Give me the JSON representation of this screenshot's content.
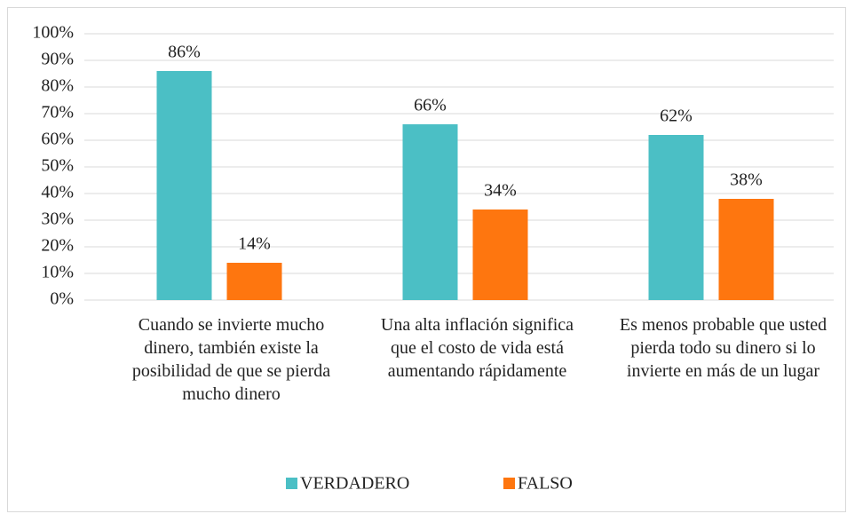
{
  "chart_data": {
    "type": "bar",
    "categories": [
      "Cuando se invierte mucho dinero, también existe la posibilidad de que se pierda mucho dinero",
      "Una alta inflación significa que el costo de vida está aumentando rápidamente",
      "Es menos probable que usted pierda todo su dinero si lo invierte en más de un lugar"
    ],
    "series": [
      {
        "name": "VERDADERO",
        "color": "#4bbfc5",
        "values": [
          86,
          66,
          62
        ],
        "value_labels": [
          "86%",
          "66%",
          "62%"
        ]
      },
      {
        "name": "FALSO",
        "color": "#fe760f",
        "values": [
          14,
          34,
          38
        ],
        "value_labels": [
          "14%",
          "34%",
          "38%"
        ]
      }
    ],
    "ylim": [
      0,
      100
    ],
    "yticks": [
      {
        "value": 0,
        "label": "0%"
      },
      {
        "value": 10,
        "label": "10%"
      },
      {
        "value": 20,
        "label": "20%"
      },
      {
        "value": 30,
        "label": "30%"
      },
      {
        "value": 40,
        "label": "40%"
      },
      {
        "value": 50,
        "label": "50%"
      },
      {
        "value": 60,
        "label": "60%"
      },
      {
        "value": 70,
        "label": "70%"
      },
      {
        "value": 80,
        "label": "80%"
      },
      {
        "value": 90,
        "label": "90%"
      },
      {
        "value": 100,
        "label": "100%"
      }
    ],
    "grid": true,
    "legend": "bottom"
  }
}
